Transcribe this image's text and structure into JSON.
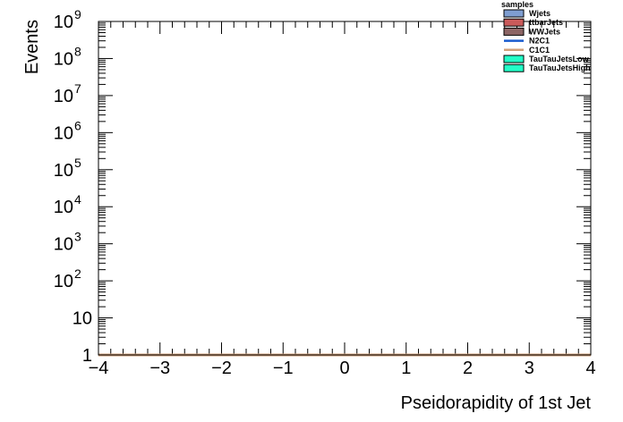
{
  "chart_data": {
    "type": "line",
    "xlabel": "Pseidorapidity of 1st Jet",
    "ylabel": "Events",
    "xlim": [
      -4,
      4
    ],
    "ylim": [
      1,
      1000000000
    ],
    "y_scale": "log",
    "grid": false,
    "x_ticks": [
      {
        "value": -4,
        "label": "−4"
      },
      {
        "value": -3,
        "label": "−3"
      },
      {
        "value": -2,
        "label": "−2"
      },
      {
        "value": -1,
        "label": "−1"
      },
      {
        "value": 0,
        "label": "0"
      },
      {
        "value": 1,
        "label": "1"
      },
      {
        "value": 2,
        "label": "2"
      },
      {
        "value": 3,
        "label": "3"
      },
      {
        "value": 4,
        "label": "4"
      }
    ],
    "y_ticks": [
      {
        "exp": 0,
        "base": "1",
        "sup": ""
      },
      {
        "exp": 1,
        "base": "10",
        "sup": ""
      },
      {
        "exp": 2,
        "base": "10",
        "sup": "2"
      },
      {
        "exp": 3,
        "base": "10",
        "sup": "3"
      },
      {
        "exp": 4,
        "base": "10",
        "sup": "4"
      },
      {
        "exp": 5,
        "base": "10",
        "sup": "5"
      },
      {
        "exp": 6,
        "base": "10",
        "sup": "6"
      },
      {
        "exp": 7,
        "base": "10",
        "sup": "7"
      },
      {
        "exp": 8,
        "base": "10",
        "sup": "8"
      },
      {
        "exp": 9,
        "base": "10",
        "sup": "9"
      }
    ],
    "legend": {
      "title": "samples",
      "placement": "top-right",
      "entries": [
        {
          "name": "Wjets",
          "style": "box",
          "fill": "#7f9ed1"
        },
        {
          "name": "ttbarJets",
          "style": "box",
          "fill": "#c95a5a"
        },
        {
          "name": "WWJets",
          "style": "box",
          "fill": "#8c6565"
        },
        {
          "name": "N2C1",
          "style": "line",
          "color": "#1a5ccf"
        },
        {
          "name": "C1C1",
          "style": "line",
          "color": "#d2a07a"
        },
        {
          "name": "TauTauJetsLow",
          "style": "box",
          "fill": "#22ffc8"
        },
        {
          "name": "TauTauJetsHigh",
          "style": "box",
          "fill": "#22ffc8"
        }
      ]
    },
    "series": [
      {
        "name": "C1C1",
        "color": "#d2a07a",
        "x": [
          -4,
          4
        ],
        "y": [
          1,
          1
        ]
      }
    ]
  }
}
